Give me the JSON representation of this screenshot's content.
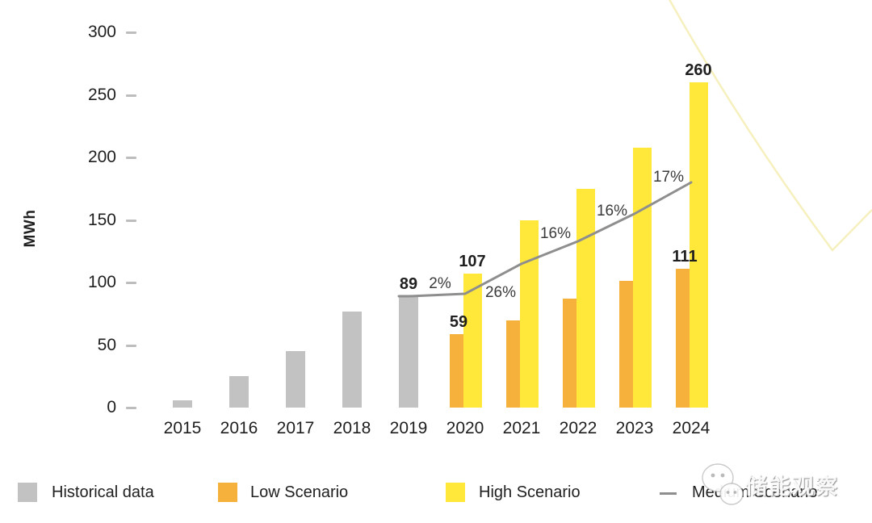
{
  "watermark": {
    "text": "储能观察",
    "logo_icon": "wechat-bubbles-icon"
  },
  "chart_data": {
    "type": "bar",
    "title": "",
    "xlabel": "",
    "ylabel": "MWh",
    "ylim": [
      0,
      300
    ],
    "yticks": [
      300,
      250,
      200,
      150,
      100,
      50,
      0
    ],
    "grid": false,
    "legend_position": "bottom",
    "categories": [
      "2015",
      "2016",
      "2017",
      "2018",
      "2019",
      "2020",
      "2021",
      "2022",
      "2023",
      "2024"
    ],
    "series": [
      {
        "name": "Historical data",
        "role": "historical",
        "type": "bar",
        "color": "#C2C2C3",
        "values": [
          6,
          25,
          45,
          77,
          89,
          null,
          null,
          null,
          null,
          null
        ]
      },
      {
        "name": "Low Scenario",
        "role": "low",
        "type": "bar",
        "color": "#F5B13C",
        "values": [
          null,
          null,
          null,
          null,
          null,
          59,
          70,
          87,
          101,
          111
        ]
      },
      {
        "name": "High Scenario",
        "role": "high",
        "type": "bar",
        "color": "#FFE83A",
        "values": [
          null,
          null,
          null,
          null,
          null,
          107,
          150,
          175,
          208,
          260
        ]
      },
      {
        "name": "Medium Scenario",
        "role": "medium",
        "type": "line",
        "color": "#8E8E8E",
        "values": [
          null,
          null,
          null,
          null,
          89,
          91,
          115,
          133,
          155,
          180
        ]
      }
    ],
    "value_labels": [
      {
        "category": "2019",
        "role": "historical",
        "text": "89"
      },
      {
        "category": "2020",
        "role": "low",
        "text": "59"
      },
      {
        "category": "2020",
        "role": "high",
        "text": "107"
      },
      {
        "category": "2024",
        "role": "low",
        "text": "111"
      },
      {
        "category": "2024",
        "role": "high",
        "text": "260"
      }
    ],
    "growth_labels": [
      {
        "text": "2%",
        "x": 545,
        "y": 352
      },
      {
        "text": "26%",
        "x": 620,
        "y": 363
      },
      {
        "text": "16%",
        "x": 688,
        "y": 290
      },
      {
        "text": "16%",
        "x": 758,
        "y": 262
      },
      {
        "text": "17%",
        "x": 828,
        "y": 220
      }
    ],
    "legend": [
      {
        "label": "Historical data",
        "marker": "square",
        "color": "#C2C2C3"
      },
      {
        "label": "Low Scenario",
        "marker": "square",
        "color": "#F5B13C"
      },
      {
        "label": "High Scenario",
        "marker": "square",
        "color": "#FFE83A"
      },
      {
        "label": "Medium Scenario",
        "marker": "line",
        "color": "#8E8E8E"
      }
    ],
    "tick_mark_color": "#BDBDBD",
    "text_color": "#1F1F1F",
    "decor_color": "#F6F0BE"
  }
}
